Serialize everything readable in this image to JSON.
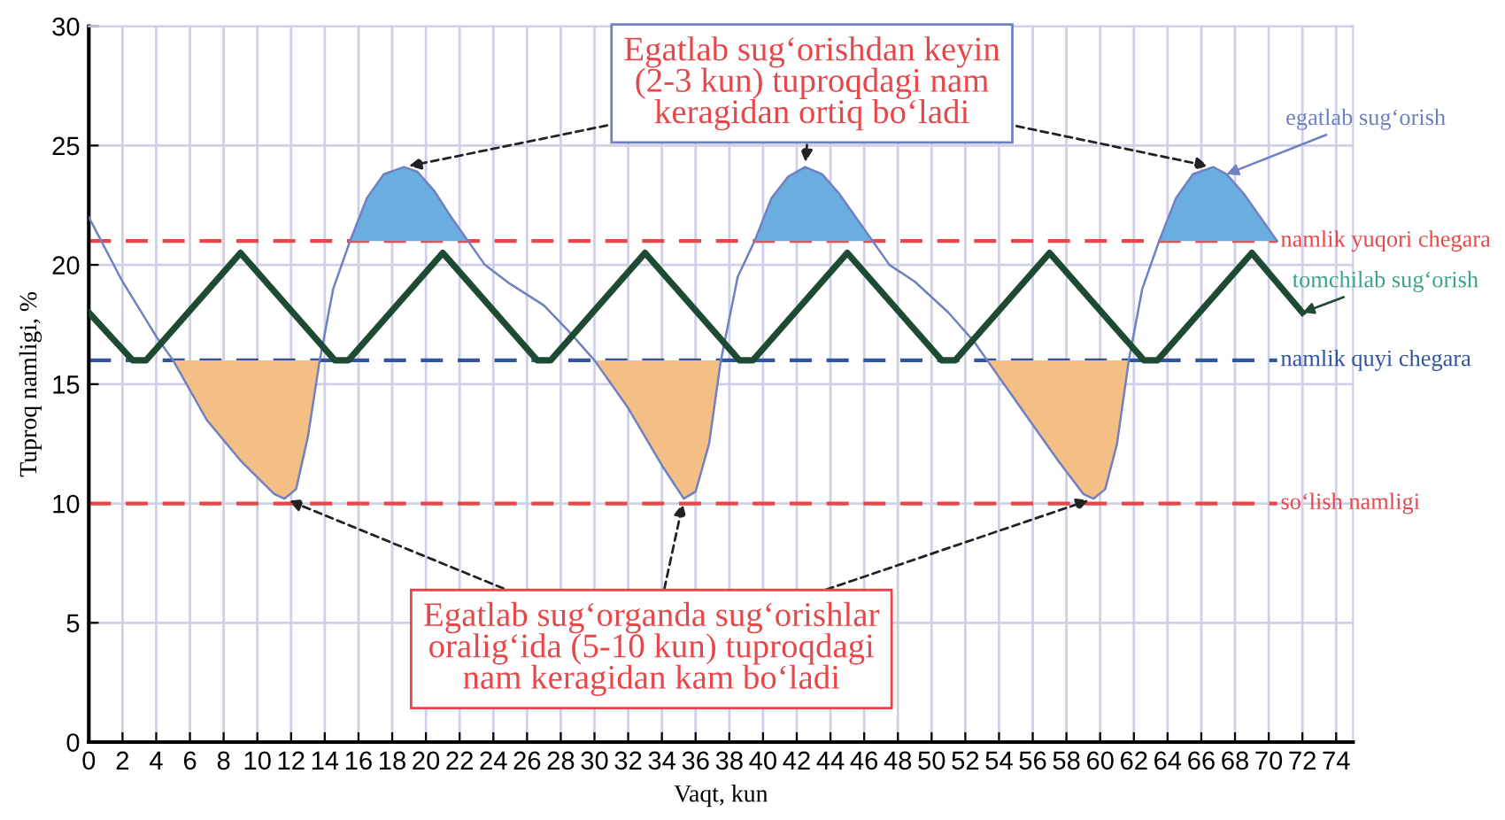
{
  "chart_data": {
    "type": "line",
    "xlabel": "Vaqt, kun",
    "ylabel": "Tuproq namligi, %",
    "xlim": [
      0,
      75
    ],
    "xticks": [
      0,
      2,
      4,
      6,
      8,
      10,
      12,
      14,
      16,
      18,
      20,
      22,
      24,
      26,
      28,
      30,
      32,
      34,
      36,
      38,
      40,
      42,
      44,
      46,
      48,
      50,
      52,
      54,
      56,
      58,
      60,
      62,
      64,
      66,
      68,
      70,
      72,
      74
    ],
    "ylim": [
      0,
      30
    ],
    "yticks": [
      0,
      5,
      10,
      15,
      20,
      25,
      30
    ],
    "grid": true,
    "legend": false,
    "series": [
      {
        "name": "egatlab sug‘orish",
        "color": "#7080c0",
        "x": [
          0,
          2,
          4,
          5,
          7,
          9,
          11,
          11.6,
          12.3,
          13,
          13.7,
          14.5,
          15.5,
          16.5,
          17.5,
          18.7,
          19.5,
          20.5,
          21.5,
          22.5,
          23.5,
          25,
          27,
          28.5,
          30,
          32,
          34,
          35.3,
          36,
          36.8,
          37.5,
          38.5,
          39.5,
          40.5,
          41.5,
          42.5,
          43.5,
          44.5,
          45.5,
          46.5,
          47.5,
          49,
          51,
          52.5,
          53.3,
          55.5,
          57.5,
          59,
          59.6,
          60.3,
          61,
          61.7,
          62.5,
          63.5,
          64.5,
          65.5,
          66.7,
          67.5,
          68.5,
          69.5,
          70.5
        ],
        "values": [
          22,
          19.3,
          17,
          16,
          13.5,
          11.8,
          10.4,
          10.2,
          10.6,
          12.8,
          16,
          19,
          21,
          22.8,
          23.8,
          24.1,
          23.9,
          23.1,
          22,
          21,
          20,
          19.2,
          18.3,
          17.2,
          16,
          14,
          11.6,
          10.2,
          10.5,
          12.5,
          16,
          19.5,
          21,
          22.8,
          23.7,
          24.1,
          23.8,
          23,
          22,
          21,
          20,
          19.3,
          18,
          16.8,
          16,
          13.8,
          11.8,
          10.4,
          10.2,
          10.6,
          12.5,
          16,
          19,
          21,
          22.8,
          23.8,
          24.1,
          23.8,
          23,
          22,
          21
        ]
      },
      {
        "name": "tomchilab sug‘orish",
        "color": "#1e4a33",
        "x": [
          0,
          2.6,
          3.4,
          9,
          14.6,
          15.4,
          21,
          26.6,
          27.4,
          33,
          38.6,
          39.4,
          45,
          50.6,
          51.4,
          57,
          62.6,
          63.4,
          69,
          72
        ],
        "values": [
          18,
          16,
          16,
          20.5,
          16,
          16,
          20.5,
          16,
          16,
          20.5,
          16,
          16,
          20.5,
          16,
          16,
          20.5,
          16,
          16,
          20.5,
          18
        ]
      },
      {
        "type": "area",
        "color": "#6aaee0",
        "x": [
          15.5,
          16.5,
          17.5,
          18.7,
          19.5,
          20.5,
          21.5,
          22.5,
          null,
          39.5,
          40.5,
          41.5,
          42.5,
          43.5,
          44.5,
          45.5,
          46.5,
          null,
          63.5,
          64.5,
          65.5,
          66.7,
          67.5,
          68.5,
          69.5,
          70.5
        ],
        "values": [
          21,
          22.8,
          23.8,
          24.1,
          23.9,
          23.1,
          22,
          21,
          null,
          21,
          22.8,
          23.7,
          24.1,
          23.8,
          23,
          22,
          21,
          null,
          21,
          22.8,
          23.8,
          24.1,
          23.8,
          23,
          22,
          21
        ]
      },
      {
        "type": "area",
        "color": "#f4bf85",
        "x": [
          5,
          7,
          9,
          11,
          11.6,
          12.3,
          13,
          13.7,
          null,
          30,
          32,
          34,
          35.3,
          36,
          36.8,
          37.5,
          null,
          53.3,
          55.5,
          57.5,
          59,
          59.6,
          60.3,
          61,
          61.7
        ],
        "values": [
          16,
          13.5,
          11.8,
          10.4,
          10.2,
          10.6,
          12.8,
          16,
          null,
          16,
          14,
          11.6,
          10.2,
          10.5,
          12.5,
          16,
          null,
          16,
          13.8,
          11.8,
          10.4,
          10.2,
          10.6,
          12.5,
          16
        ]
      }
    ],
    "ref_lines": [
      {
        "axis": "y",
        "value": 21,
        "label": "namlik yuqori chegara",
        "color": "#e8474a",
        "line_style": "dashed"
      },
      {
        "axis": "y",
        "value": 16,
        "label": "namlik quyi chegara",
        "color": "#2f55a0",
        "line_style": "dashed"
      },
      {
        "axis": "y",
        "value": 10,
        "label": "so‘lish namligi",
        "color": "#e8474a",
        "line_style": "dashed"
      }
    ],
    "annotations": [
      {
        "text": "Egatlab sug‘orishdan keyin\n(2-3 kun) tuproqdagi nam\nkeragidan ortiq bo‘ladi",
        "x": 42.5,
        "y": 24.1
      },
      {
        "text": "Egatlab sug‘organda sug‘orishlar\noralig‘ida (5-10 kun) tuproqdagi\nnam keragidan kam bo‘ladi",
        "x": 35.3,
        "y": 10.2
      }
    ]
  }
}
